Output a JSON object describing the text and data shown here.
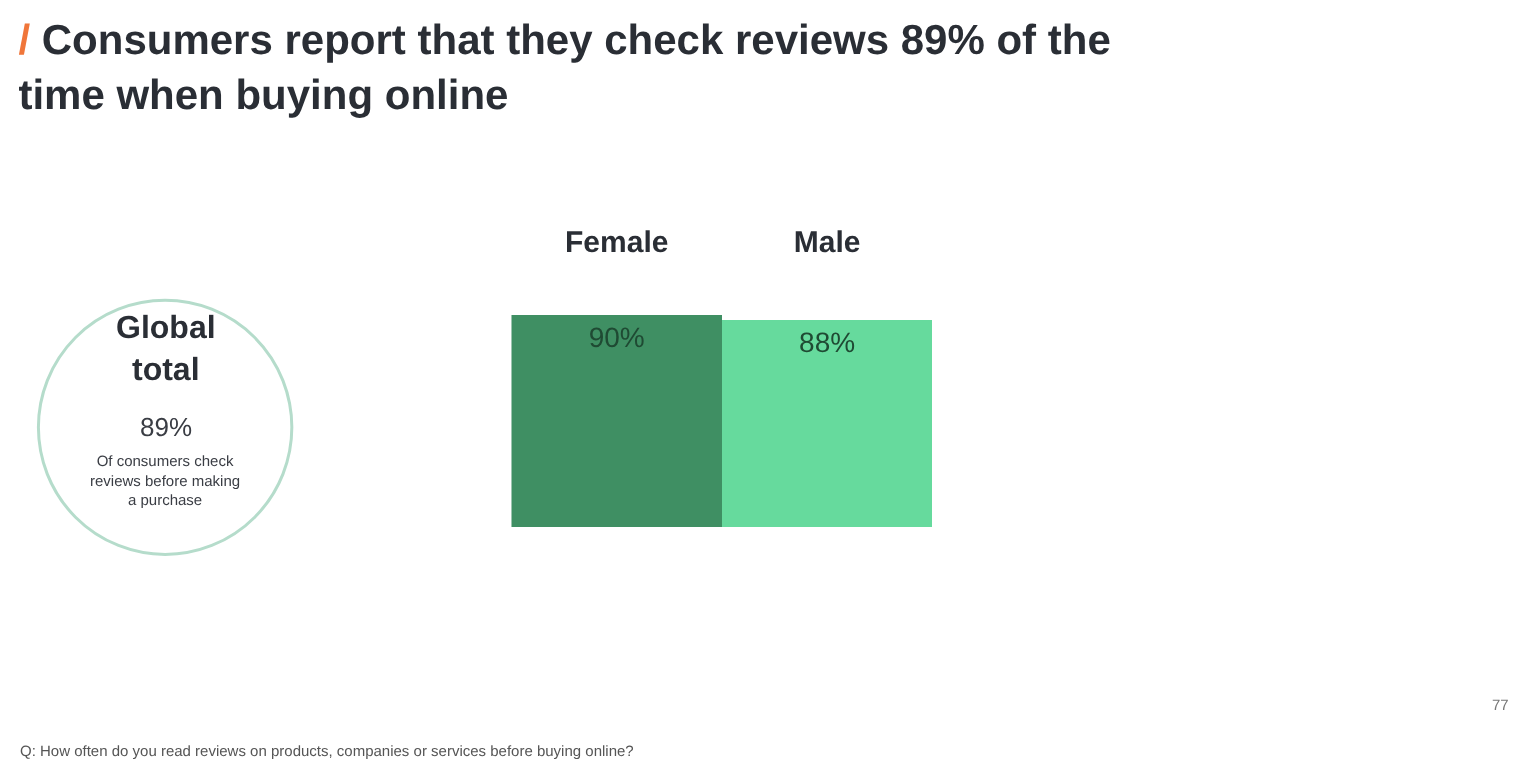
{
  "chart_data": {
    "type": "bar",
    "title": "/ Consumers report that they check reviews 89% of the time when buying online",
    "categories": [
      "Female",
      "Male"
    ],
    "values": [
      90,
      88
    ],
    "value_labels": [
      "90%",
      "88%"
    ],
    "colors": [
      "#3f8f63",
      "#66da9d"
    ],
    "annotations": [
      "Global total",
      "89%",
      "Of consumers check reviews before making a purchase",
      "Q: How often do you read reviews on products, companies or services before buying online?",
      "77"
    ]
  }
}
